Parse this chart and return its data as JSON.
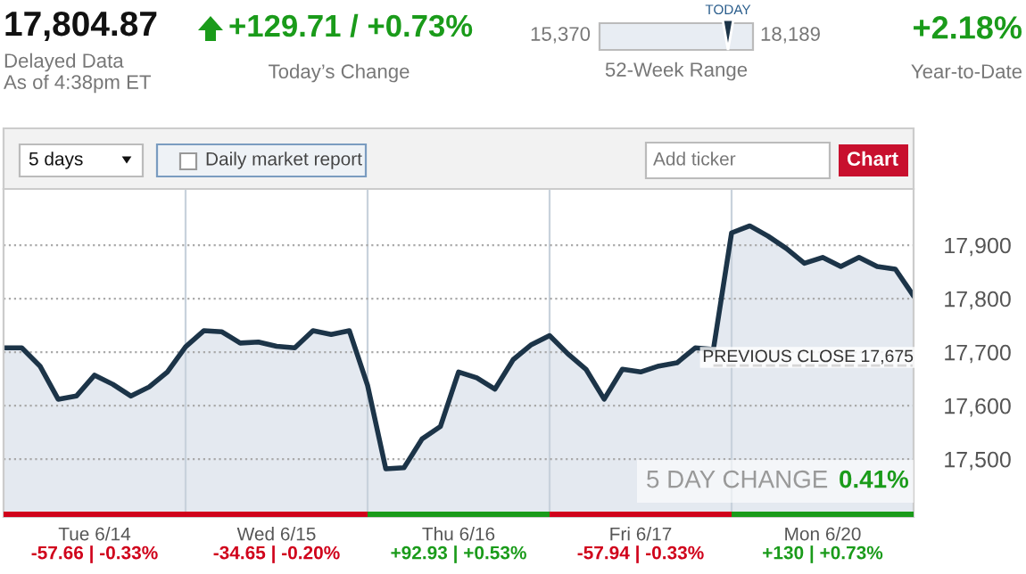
{
  "chart_data": {
    "type": "area",
    "categories": [
      null,
      null,
      null,
      null,
      null,
      "Tue 6/14",
      null,
      null,
      null,
      null,
      null,
      null,
      null,
      null,
      null,
      "Wed 6/15",
      null,
      null,
      null,
      null,
      null,
      null,
      null,
      null,
      null,
      "Thu 6/16",
      null,
      null,
      null,
      null,
      null,
      null,
      null,
      null,
      null,
      "Fri 6/17",
      null,
      null,
      null,
      null,
      null,
      null,
      null,
      null,
      null,
      "Mon 6/20",
      null,
      null,
      null,
      null,
      null
    ],
    "series": [
      {
        "color": "#1c3448",
        "values": [
          17708,
          17708,
          17674,
          17612,
          17618,
          17657,
          17640,
          17618,
          17635,
          17663,
          17710,
          17740,
          17738,
          17717,
          17719,
          17711,
          17708,
          17740,
          17733,
          17740,
          17638,
          17482,
          17484,
          17538,
          17561,
          17663,
          17652,
          17631,
          17686,
          17714,
          17731,
          17697,
          17668,
          17612,
          17668,
          17663,
          17674,
          17680,
          17708,
          17705,
          17923,
          17936,
          17917,
          17894,
          17866,
          17877,
          17860,
          17877,
          17860,
          17855,
          17805
        ]
      }
    ],
    "ylim": [
      17392,
      18005
    ],
    "yticks": [
      {
        "value": 17500,
        "label": "17,500"
      },
      {
        "value": 17600,
        "label": "17,600"
      },
      {
        "value": 17700,
        "label": "17,700"
      },
      {
        "value": 17800,
        "label": "17,800"
      },
      {
        "value": 17900,
        "label": "17,900"
      }
    ],
    "grid": true,
    "ref_lines": [
      {
        "axis": "y",
        "value": 17675,
        "label": "PREVIOUS CLOSE 17,675",
        "color": "#333333",
        "line_style": "dashed"
      }
    ],
    "annotations": [
      "17,804.87",
      "Delayed Data",
      "As of 4:38pm ET",
      "+129.71 / +0.73%",
      "Today’s Change",
      "15,370",
      "18,189",
      "TODAY",
      "52-Week Range",
      "+2.18%",
      "Year-to-Date",
      "5 days",
      "Daily market report",
      "Add ticker",
      "Chart",
      "5 DAY CHANGE",
      "0.41%",
      "-57.66 | -0.33%",
      "-34.65 | -0.20%",
      "+92.93 | +0.53%",
      "-57.94 | -0.33%",
      "+130 | +0.73%"
    ]
  }
}
